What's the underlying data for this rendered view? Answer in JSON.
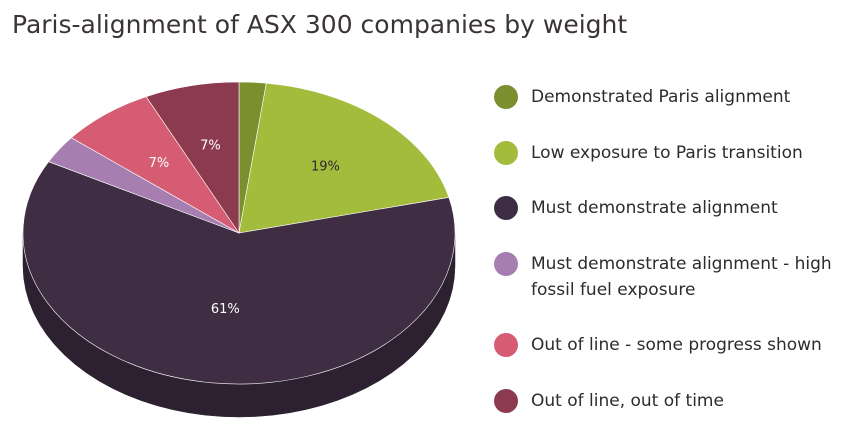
{
  "chart_data": {
    "type": "pie",
    "title": "Paris-alignment of ASX 300 companies by weight",
    "categories": [
      "Demonstrated Paris alignment",
      "Low exposure to Paris transition",
      "Must demonstrate alignment",
      "Must demonstrate alignment - high fossil fuel exposure",
      "Out of line - some progress shown",
      "Out of line, out of time"
    ],
    "values": [
      2,
      19,
      61,
      3,
      7,
      7
    ],
    "data_labels": [
      "",
      "19%",
      "61%",
      "",
      "7%",
      "7%"
    ],
    "colors": [
      "#7c8f2f",
      "#a4bc3c",
      "#3f2d43",
      "#a67fb0",
      "#d55c72",
      "#8b3a50"
    ],
    "legend_position": "right",
    "style": "3d"
  }
}
